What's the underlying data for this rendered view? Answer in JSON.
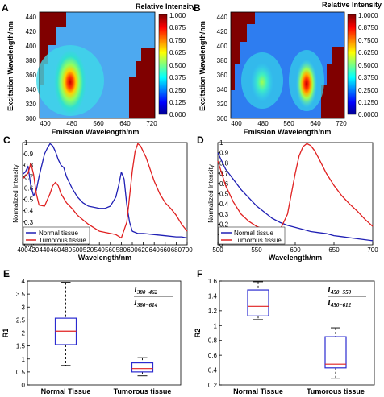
{
  "chart_data": [
    {
      "panel": "A",
      "type": "heatmap",
      "title": "Relative Intensity",
      "xlabel": "Emission Wavelength/nm",
      "ylabel": "Excitation Wavelength/nm",
      "xticks": [
        "400",
        "480",
        "560",
        "640",
        "720"
      ],
      "yticks": [
        "300",
        "320",
        "340",
        "360",
        "380",
        "400",
        "420",
        "440"
      ],
      "xlim": [
        370,
        720
      ],
      "ylim": [
        300,
        450
      ],
      "colorbar_ticks": [
        "0.000",
        "0.125",
        "0.250",
        "0.375",
        "0.500",
        "0.625",
        "0.750",
        "0.875",
        "1.000"
      ],
      "peaks": [
        {
          "x": 475,
          "y": 355,
          "value": 1.0
        }
      ]
    },
    {
      "panel": "B",
      "type": "heatmap",
      "title": "Relative Intensity",
      "xlabel": "Emission Wavelength/nm",
      "ylabel": "Excitation Wavelength/nm",
      "xticks": [
        "400",
        "480",
        "560",
        "640",
        "720"
      ],
      "yticks": [
        "300",
        "320",
        "340",
        "360",
        "380",
        "400",
        "420",
        "440"
      ],
      "xlim": [
        370,
        720
      ],
      "ylim": [
        300,
        450
      ],
      "colorbar_ticks": [
        "0.0000",
        "0.1250",
        "0.2500",
        "0.3750",
        "0.5000",
        "0.6250",
        "0.7500",
        "0.8750",
        "1.0000"
      ],
      "peaks": [
        {
          "x": 475,
          "y": 355,
          "value": 0.5
        },
        {
          "x": 625,
          "y": 350,
          "value": 1.0
        }
      ]
    },
    {
      "panel": "C",
      "type": "line",
      "xlabel": "Wavelength/nm",
      "ylabel": "Normalized Intensity",
      "xlim": [
        400,
        700
      ],
      "ylim": [
        0.1,
        1.0
      ],
      "xticks": [
        "400",
        "420",
        "440",
        "460",
        "480",
        "500",
        "520",
        "540",
        "560",
        "580",
        "600",
        "620",
        "640",
        "660",
        "680",
        "700"
      ],
      "yticks": [
        "0.1",
        "0.2",
        "0.3",
        "0.4",
        "0.5",
        "0.6",
        "0.7",
        "0.8",
        "0.9",
        "1"
      ],
      "legend": "bottom-left",
      "series": [
        {
          "name": "Normal tissue",
          "color": "#1f1fb4",
          "x": [
            400,
            405,
            410,
            415,
            420,
            425,
            430,
            435,
            440,
            445,
            450,
            455,
            460,
            465,
            470,
            475,
            480,
            490,
            500,
            510,
            520,
            530,
            540,
            550,
            560,
            570,
            575,
            580,
            585,
            590,
            595,
            600,
            610,
            620,
            640,
            660,
            680,
            690,
            700
          ],
          "y": [
            0.72,
            0.74,
            0.79,
            0.62,
            0.53,
            0.58,
            0.7,
            0.8,
            0.9,
            0.95,
            0.99,
            0.97,
            0.92,
            0.85,
            0.8,
            0.78,
            0.7,
            0.6,
            0.52,
            0.47,
            0.44,
            0.43,
            0.42,
            0.42,
            0.44,
            0.52,
            0.62,
            0.74,
            0.68,
            0.45,
            0.3,
            0.22,
            0.2,
            0.2,
            0.19,
            0.18,
            0.17,
            0.17,
            0.16
          ]
        },
        {
          "name": "Tumorous tissue",
          "color": "#e02020",
          "x": [
            400,
            410,
            415,
            420,
            425,
            430,
            440,
            450,
            455,
            460,
            465,
            470,
            480,
            490,
            500,
            510,
            520,
            530,
            540,
            550,
            560,
            570,
            580,
            590,
            600,
            605,
            610,
            615,
            620,
            625,
            630,
            640,
            650,
            660,
            670,
            680,
            690,
            700
          ],
          "y": [
            0.68,
            0.73,
            0.82,
            0.72,
            0.55,
            0.45,
            0.44,
            0.55,
            0.62,
            0.65,
            0.62,
            0.55,
            0.47,
            0.42,
            0.36,
            0.32,
            0.28,
            0.25,
            0.22,
            0.21,
            0.2,
            0.19,
            0.16,
            0.3,
            0.75,
            0.92,
            0.99,
            0.97,
            0.92,
            0.87,
            0.8,
            0.66,
            0.55,
            0.47,
            0.42,
            0.36,
            0.28,
            0.22
          ]
        }
      ]
    },
    {
      "panel": "D",
      "type": "line",
      "xlabel": "Wavelength/nm",
      "ylabel": "Normalized Intensity",
      "xlim": [
        500,
        700
      ],
      "ylim": [
        0.0,
        1.0
      ],
      "xticks": [
        "500",
        "550",
        "600",
        "650",
        "700"
      ],
      "yticks": [
        "0",
        "0.1",
        "0.2",
        "0.3",
        "0.4",
        "0.5",
        "0.6",
        "0.7",
        "0.8",
        "0.9",
        "1"
      ],
      "legend": "bottom-left",
      "series": [
        {
          "name": "Normal tissue",
          "color": "#1f1fb4",
          "x": [
            500,
            505,
            510,
            520,
            530,
            540,
            550,
            560,
            570,
            580,
            590,
            600,
            610,
            620,
            630,
            640,
            650,
            660,
            670,
            680,
            690,
            700
          ],
          "y": [
            0.9,
            0.82,
            0.74,
            0.64,
            0.54,
            0.46,
            0.38,
            0.32,
            0.26,
            0.22,
            0.19,
            0.17,
            0.15,
            0.13,
            0.12,
            0.11,
            0.09,
            0.08,
            0.07,
            0.06,
            0.05,
            0.04
          ]
        },
        {
          "name": "Tumorous tissue",
          "color": "#e02020",
          "x": [
            500,
            505,
            510,
            520,
            530,
            540,
            550,
            560,
            570,
            580,
            590,
            600,
            605,
            610,
            615,
            620,
            625,
            630,
            640,
            650,
            660,
            670,
            680,
            690,
            700
          ],
          "y": [
            0.82,
            0.7,
            0.58,
            0.42,
            0.3,
            0.23,
            0.18,
            0.15,
            0.14,
            0.14,
            0.3,
            0.7,
            0.87,
            0.96,
            0.99,
            0.97,
            0.92,
            0.85,
            0.7,
            0.58,
            0.48,
            0.4,
            0.33,
            0.25,
            0.18
          ]
        }
      ]
    },
    {
      "panel": "E",
      "type": "box",
      "ylabel": "R1",
      "ylim": [
        0,
        4
      ],
      "yticks": [
        "0",
        "0.5",
        "1",
        "1.5",
        "2",
        "2.5",
        "3",
        "3.5",
        "4"
      ],
      "categories": [
        "Normal Tissue",
        "Tumorous tissue"
      ],
      "boxes": [
        {
          "min": 0.75,
          "q1": 1.55,
          "median": 2.07,
          "q3": 2.57,
          "max": 3.95
        },
        {
          "min": 0.35,
          "q1": 0.5,
          "median": 0.63,
          "q3": 0.85,
          "max": 1.05
        }
      ],
      "annotation": {
        "numerator": "I380-462",
        "denominator": "I380-614",
        "num_main": "I",
        "num_sub": "380−462",
        "den_main": "I",
        "den_sub": "380−614"
      }
    },
    {
      "panel": "F",
      "type": "box",
      "ylabel": "R2",
      "ylim": [
        0.2,
        1.6
      ],
      "yticks": [
        "0.2",
        "0.4",
        "0.6",
        "0.8",
        "1",
        "1.2",
        "1.4",
        "1.6"
      ],
      "categories": [
        "Normal Tissue",
        "Tumorous tissue"
      ],
      "boxes": [
        {
          "min": 1.08,
          "q1": 1.13,
          "median": 1.26,
          "q3": 1.48,
          "max": 1.59
        },
        {
          "min": 0.29,
          "q1": 0.43,
          "median": 0.48,
          "q3": 0.85,
          "max": 0.97
        }
      ],
      "annotation": {
        "numerator": "I450-550",
        "denominator": "I450-612",
        "num_main": "I",
        "num_sub": "450−550",
        "den_main": "I",
        "den_sub": "450−612"
      }
    }
  ]
}
